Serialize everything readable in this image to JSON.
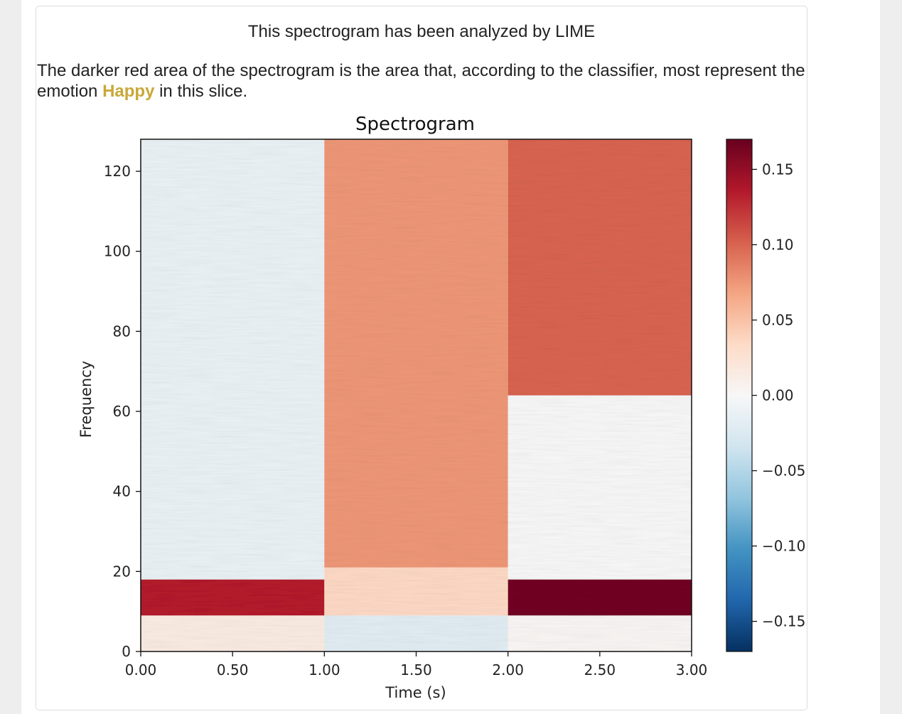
{
  "card": {
    "title": "This spectrogram has been analyzed by LIME",
    "desc_prefix": "The darker red area of the spectrogram is the area that, according to the classifier, most represent the emotion ",
    "emotion": "Happy",
    "desc_suffix": " in this slice."
  },
  "chart_data": {
    "type": "heatmap",
    "title": "Spectrogram",
    "xlabel": "Time (s)",
    "ylabel": "Frequency",
    "xlim": [
      0,
      3
    ],
    "ylim": [
      0,
      128
    ],
    "x_ticks": [
      "0.00",
      "0.50",
      "1.00",
      "1.50",
      "2.00",
      "2.50",
      "3.00"
    ],
    "x_tick_values": [
      0,
      0.5,
      1,
      1.5,
      2,
      2.5,
      3
    ],
    "y_ticks": [
      "0",
      "20",
      "40",
      "60",
      "80",
      "100",
      "120"
    ],
    "y_tick_values": [
      0,
      20,
      40,
      60,
      80,
      100,
      120
    ],
    "colorbar": {
      "colormap": "RdBu_r",
      "range": [
        -0.17,
        0.17
      ],
      "ticks": [
        "0.15",
        "0.10",
        "0.05",
        "0.00",
        "−0.05",
        "−0.10",
        "−0.15"
      ],
      "tick_values": [
        0.15,
        0.1,
        0.05,
        0.0,
        -0.05,
        -0.1,
        -0.15
      ]
    },
    "segments": [
      {
        "x0": 0,
        "x1": 1,
        "y0": 0,
        "y1": 9,
        "value": 0.015
      },
      {
        "x0": 0,
        "x1": 1,
        "y0": 9,
        "y1": 18,
        "value": 0.135
      },
      {
        "x0": 0,
        "x1": 1,
        "y0": 18,
        "y1": 128,
        "value": -0.012
      },
      {
        "x0": 1,
        "x1": 2,
        "y0": 0,
        "y1": 9,
        "value": -0.02
      },
      {
        "x0": 1,
        "x1": 2,
        "y0": 9,
        "y1": 21,
        "value": 0.035
      },
      {
        "x0": 1,
        "x1": 2,
        "y0": 21,
        "y1": 128,
        "value": 0.075
      },
      {
        "x0": 2,
        "x1": 3,
        "y0": 0,
        "y1": 9,
        "value": 0.003
      },
      {
        "x0": 2,
        "x1": 3,
        "y0": 9,
        "y1": 18,
        "value": 0.165
      },
      {
        "x0": 2,
        "x1": 3,
        "y0": 18,
        "y1": 64,
        "value": 0.0
      },
      {
        "x0": 2,
        "x1": 3,
        "y0": 64,
        "y1": 128,
        "value": 0.1
      }
    ],
    "colors": {
      "cb_stops": [
        "#053061",
        "#2166ac",
        "#4393c3",
        "#92c5de",
        "#d1e5f0",
        "#f7f7f7",
        "#fddbc7",
        "#f4a582",
        "#d6604d",
        "#b2182b",
        "#67001f"
      ]
    }
  }
}
